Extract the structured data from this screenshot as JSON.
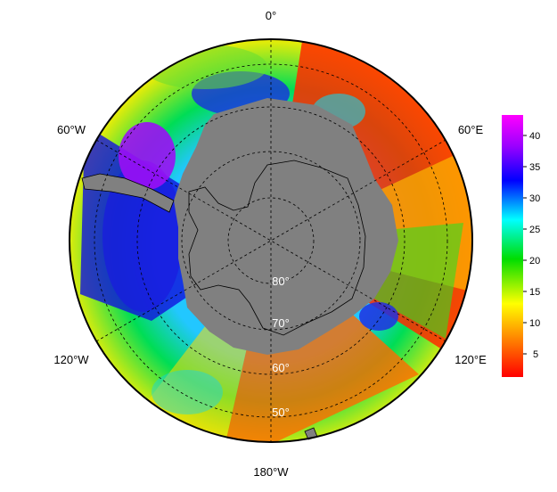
{
  "map": {
    "projection": "south-polar-stereographic",
    "longitude_labels": [
      "0°",
      "60°E",
      "120°E",
      "180°W",
      "120°W",
      "60°W"
    ],
    "latitude_labels": [
      "80°",
      "70°",
      "60°",
      "50°"
    ],
    "land_color": "#808080",
    "graticule": "dashed"
  },
  "colorbar": {
    "ticks": [
      "40",
      "35",
      "30",
      "25",
      "20",
      "15",
      "10",
      "5"
    ],
    "range": [
      1,
      43
    ],
    "palette": [
      "#ff0000",
      "#ff7f00",
      "#ffff00",
      "#00dd00",
      "#00ffff",
      "#0000ff",
      "#9900ff",
      "#ff00ff"
    ]
  }
}
